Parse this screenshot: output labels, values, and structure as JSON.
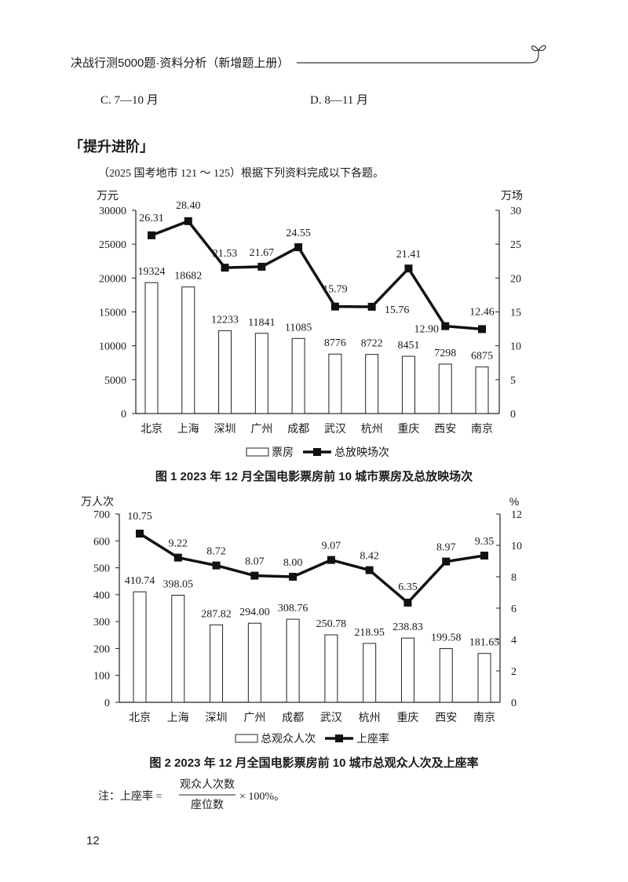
{
  "header": {
    "book_title": "决战行测5000题·资料分析（新增题上册）",
    "icon": "sprout-icon"
  },
  "options": {
    "c": "C. 7—10 月",
    "d": "D. 8—11 月"
  },
  "section": {
    "title": "「提升进阶」"
  },
  "intro": "（2025  国考地市  121 ～ 125）根据下列资料完成以下各题。",
  "note": {
    "prefix": "注：上座率 =",
    "numerator": "观众人次数",
    "denominator": "座位数",
    "suffix": "× 100%。"
  },
  "page_number": "12",
  "chart_data": [
    {
      "type": "bar+line",
      "title": "图 1   2023 年 12 月全国电影票房前 10 城市票房及总放映场次",
      "categories": [
        "北京",
        "上海",
        "深圳",
        "广州",
        "成都",
        "武汉",
        "杭州",
        "重庆",
        "西安",
        "南京"
      ],
      "left_axis": {
        "unit": "万元",
        "ylim": [
          0,
          30000
        ],
        "ticks": [
          0,
          5000,
          10000,
          15000,
          20000,
          25000,
          30000
        ]
      },
      "right_axis": {
        "unit": "万场",
        "ylim": [
          0,
          30
        ],
        "ticks": [
          0,
          5,
          10,
          15,
          20,
          25,
          30
        ]
      },
      "series": [
        {
          "name": "票房",
          "type": "bar",
          "axis": "left",
          "values": [
            19324,
            18682,
            12233,
            11841,
            11085,
            8776,
            8722,
            8451,
            7298,
            6875
          ],
          "labels": [
            "19324",
            "18682",
            "12233",
            "11841",
            "11085",
            "8776",
            "8722",
            "8451",
            "7298",
            "6875"
          ]
        },
        {
          "name": "总放映场次",
          "type": "line",
          "axis": "right",
          "values": [
            26.31,
            28.4,
            21.53,
            21.67,
            24.55,
            15.79,
            15.76,
            21.41,
            12.9,
            12.46
          ],
          "labels": [
            "26.31",
            "28.40",
            "21.53",
            "21.67",
            "24.55",
            "15.79",
            "15.76",
            "21.41",
            "12.90",
            "12.46"
          ]
        }
      ],
      "legend": "bottom",
      "grid": false
    },
    {
      "type": "bar+line",
      "title": "图 2   2023 年 12 月全国电影票房前 10 城市总观众人次及上座率",
      "categories": [
        "北京",
        "上海",
        "深圳",
        "广州",
        "成都",
        "武汉",
        "杭州",
        "重庆",
        "西安",
        "南京"
      ],
      "left_axis": {
        "unit": "万人次",
        "ylim": [
          0,
          700
        ],
        "ticks": [
          0,
          100,
          200,
          300,
          400,
          500,
          600,
          700
        ]
      },
      "right_axis": {
        "unit": "%",
        "ylim": [
          0,
          12
        ],
        "ticks": [
          0,
          2,
          4,
          6,
          8,
          10,
          12
        ]
      },
      "series": [
        {
          "name": "总观众人次",
          "type": "bar",
          "axis": "left",
          "values": [
            410.74,
            398.05,
            287.82,
            294.0,
            308.76,
            250.78,
            218.95,
            238.83,
            199.58,
            181.65
          ],
          "labels": [
            "410.74",
            "398.05",
            "287.82",
            "294.00",
            "308.76",
            "250.78",
            "218.95",
            "238.83",
            "199.58",
            "181.65"
          ]
        },
        {
          "name": "上座率",
          "type": "line",
          "axis": "right",
          "values": [
            10.75,
            9.22,
            8.72,
            8.07,
            8.0,
            9.07,
            8.42,
            6.35,
            8.97,
            9.35
          ],
          "labels": [
            "10.75",
            "9.22",
            "8.72",
            "8.07",
            "8.00",
            "9.07",
            "8.42",
            "6.35",
            "8.97",
            "9.35"
          ]
        }
      ],
      "legend": "bottom",
      "grid": false
    }
  ]
}
